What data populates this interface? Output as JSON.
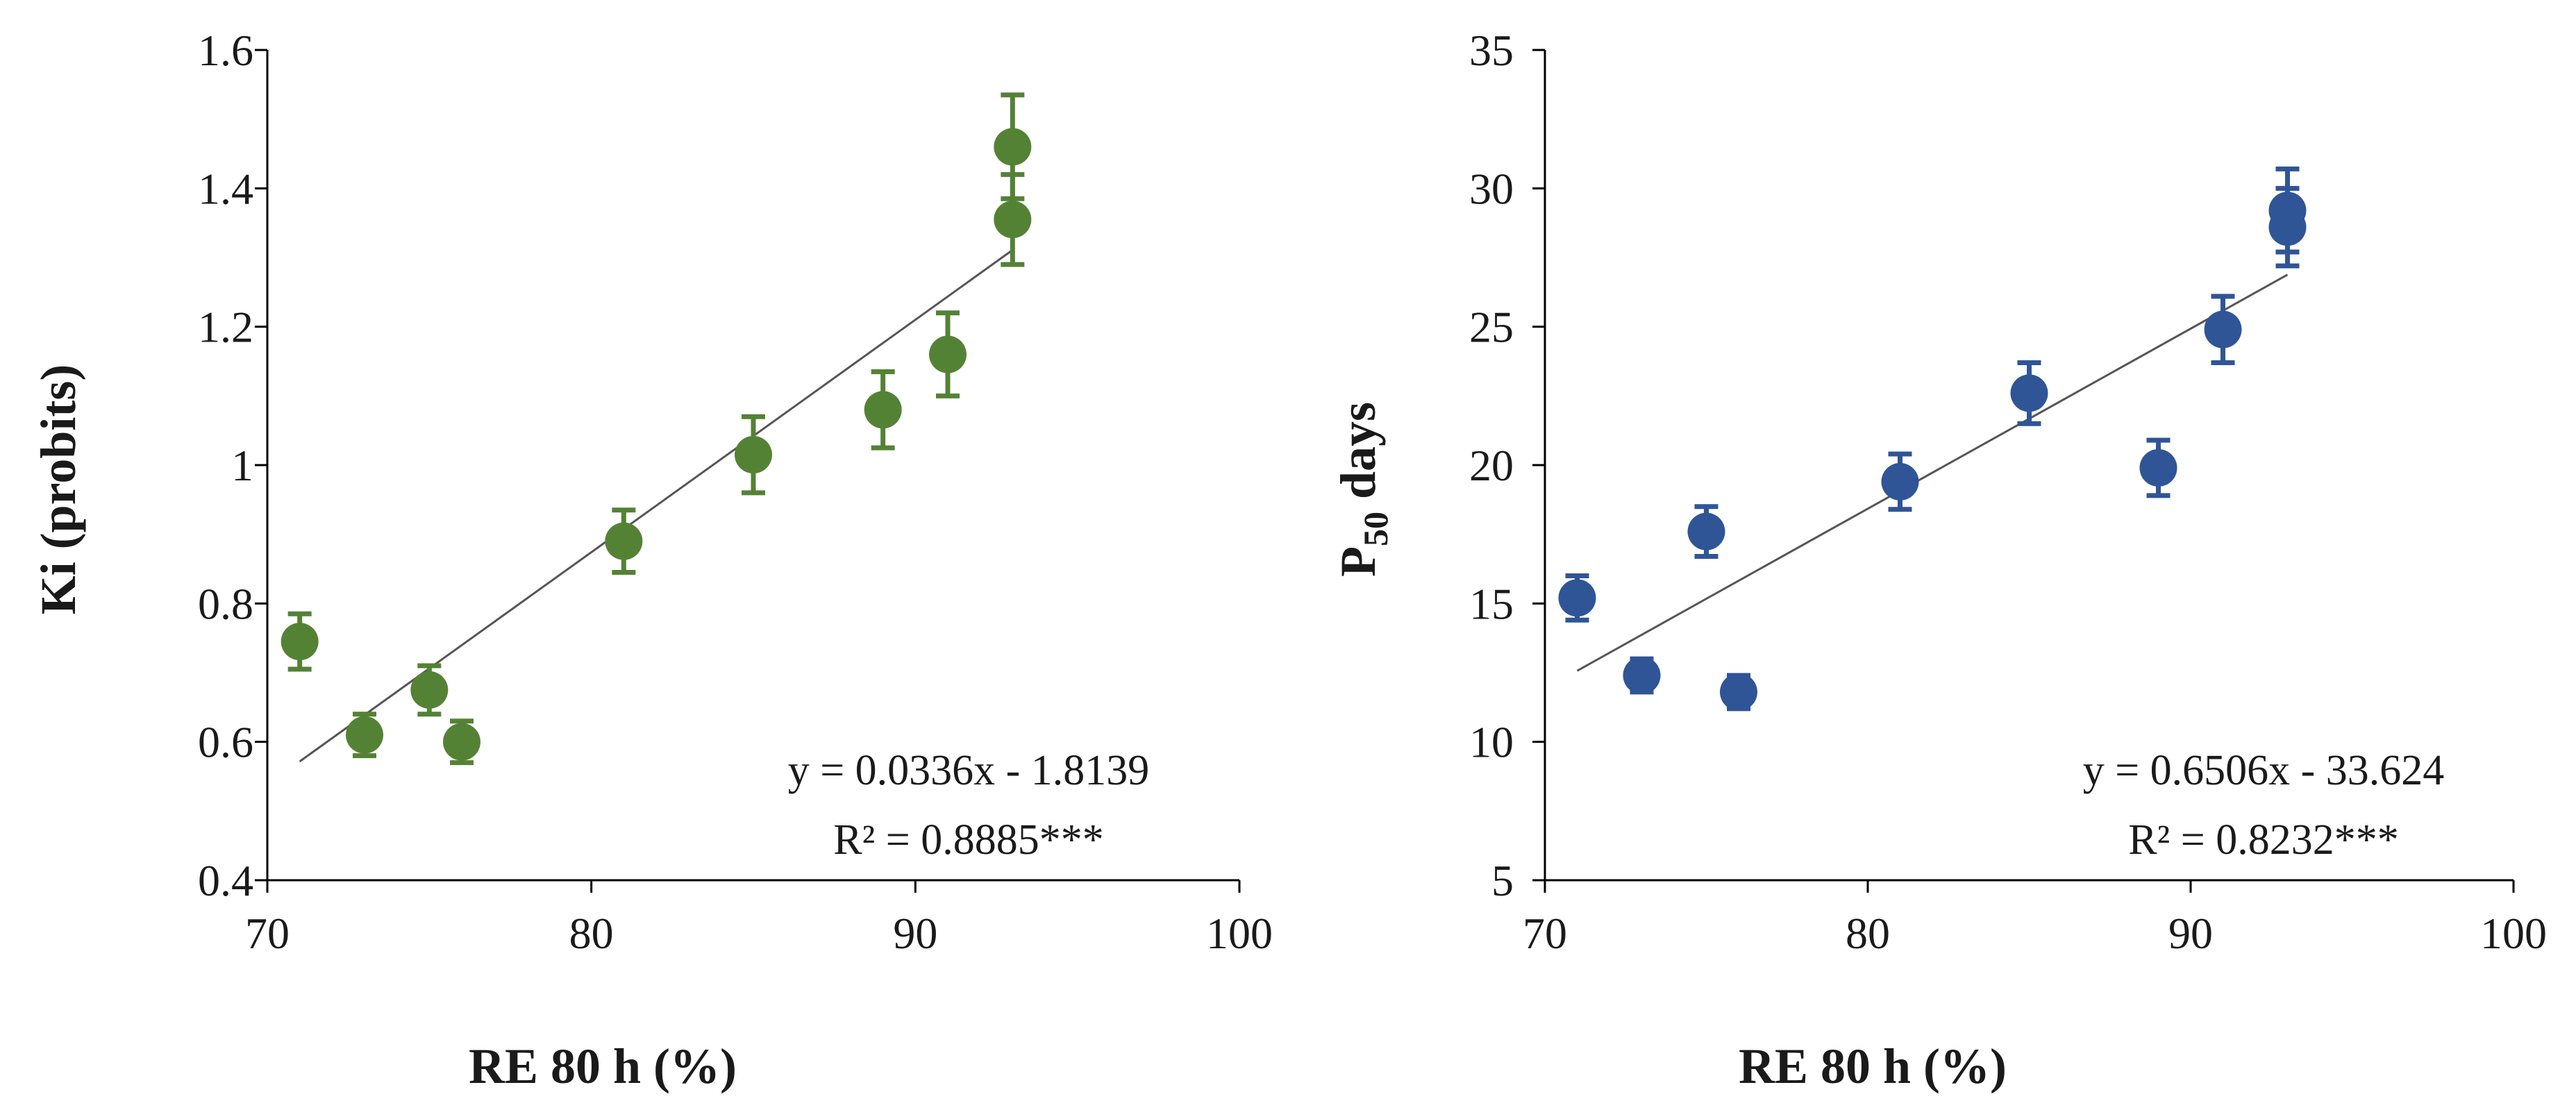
{
  "chart_data": [
    {
      "type": "scatter",
      "xlabel": "RE 80 h (%)",
      "ylabel": "Ki (probits)",
      "xlim": [
        70,
        100
      ],
      "ylim": [
        0.4,
        1.6
      ],
      "xticks": [
        70,
        80,
        90,
        100
      ],
      "yticks": [
        0.4,
        0.6,
        0.8,
        1,
        1.2,
        1.4,
        1.6
      ],
      "xtick_labels": [
        "70",
        "80",
        "90",
        "100"
      ],
      "ytick_labels": [
        "0.4",
        "0.6",
        "0.8",
        "1",
        "1.2",
        "1.4",
        "1.6"
      ],
      "grid": false,
      "color": "#548235",
      "points": [
        {
          "x": 71,
          "y": 0.745,
          "err": 0.04
        },
        {
          "x": 73,
          "y": 0.61,
          "err": 0.03
        },
        {
          "x": 75,
          "y": 0.675,
          "err": 0.035
        },
        {
          "x": 76,
          "y": 0.6,
          "err": 0.03
        },
        {
          "x": 81,
          "y": 0.89,
          "err": 0.045
        },
        {
          "x": 85,
          "y": 1.015,
          "err": 0.055
        },
        {
          "x": 89,
          "y": 1.08,
          "err": 0.055
        },
        {
          "x": 91,
          "y": 1.16,
          "err": 0.06
        },
        {
          "x": 93,
          "y": 1.355,
          "err": 0.065
        },
        {
          "x": 93,
          "y": 1.46,
          "err": 0.075
        }
      ],
      "trendline": {
        "slope": 0.0336,
        "intercept": -1.8139,
        "x_range": [
          71,
          93
        ]
      },
      "equation": "y = 0.0336x - 1.8139",
      "r2": "R² = 0.8885***"
    },
    {
      "type": "scatter",
      "xlabel": "RE 80 h (%)",
      "ylabel_main": "P",
      "ylabel_sub": "50",
      "ylabel_tail": " days",
      "xlim": [
        70,
        100
      ],
      "ylim": [
        5,
        35
      ],
      "xticks": [
        70,
        80,
        90,
        100
      ],
      "yticks": [
        5,
        10,
        15,
        20,
        25,
        30,
        35
      ],
      "xtick_labels": [
        "70",
        "80",
        "90",
        "100"
      ],
      "ytick_labels": [
        "5",
        "10",
        "15",
        "20",
        "25",
        "30",
        "35"
      ],
      "grid": false,
      "color": "#2f5597",
      "points": [
        {
          "x": 71,
          "y": 15.2,
          "err": 0.8
        },
        {
          "x": 73,
          "y": 12.4,
          "err": 0.6
        },
        {
          "x": 75,
          "y": 17.6,
          "err": 0.9
        },
        {
          "x": 76,
          "y": 11.8,
          "err": 0.6
        },
        {
          "x": 81,
          "y": 19.4,
          "err": 1.0
        },
        {
          "x": 85,
          "y": 22.6,
          "err": 1.1
        },
        {
          "x": 89,
          "y": 19.9,
          "err": 1.0
        },
        {
          "x": 91,
          "y": 24.9,
          "err": 1.2
        },
        {
          "x": 93,
          "y": 28.6,
          "err": 1.4
        },
        {
          "x": 93,
          "y": 29.2,
          "err": 1.5
        }
      ],
      "trendline": {
        "slope": 0.6506,
        "intercept": -33.624,
        "x_range": [
          71,
          93
        ]
      },
      "equation": "y = 0.6506x - 33.624",
      "r2": "R² = 0.8232***"
    }
  ]
}
